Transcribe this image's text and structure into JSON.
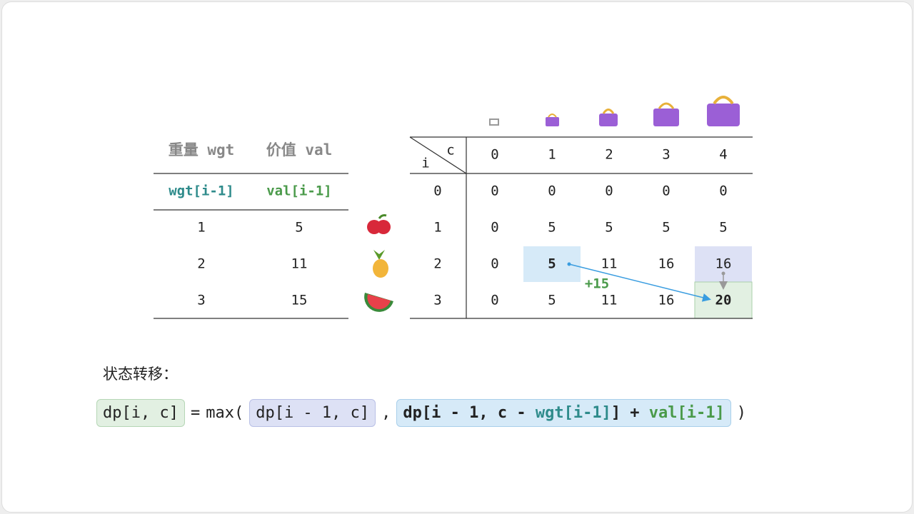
{
  "left_table": {
    "headers": [
      "重量 wgt",
      "价值 val"
    ],
    "subheaders": [
      "wgt[i-1]",
      "val[i-1]"
    ],
    "rows": [
      [
        1,
        5
      ],
      [
        2,
        11
      ],
      [
        3,
        15
      ]
    ]
  },
  "dp_table": {
    "corner_col": "c",
    "corner_row": "i",
    "columns": [
      0,
      1,
      2,
      3,
      4
    ],
    "rows": [
      {
        "label": 0,
        "cells": [
          0,
          0,
          0,
          0,
          0
        ]
      },
      {
        "label": 1,
        "cells": [
          0,
          5,
          5,
          5,
          5
        ]
      },
      {
        "label": 2,
        "cells": [
          0,
          5,
          11,
          16,
          16
        ]
      },
      {
        "label": 3,
        "cells": [
          0,
          5,
          11,
          16,
          20
        ]
      }
    ]
  },
  "annotation": "+15",
  "formula": {
    "label": "状态转移：",
    "lhs": "dp[i, c]",
    "equals": "=",
    "max_open": "max(",
    "option1": "dp[i - 1, c]",
    "comma": ",",
    "option2_a": "dp[i - 1, c - ",
    "option2_wgt": "wgt[i-1]",
    "option2_b": "] + ",
    "option2_val": "val[i-1]",
    "close": ")"
  }
}
